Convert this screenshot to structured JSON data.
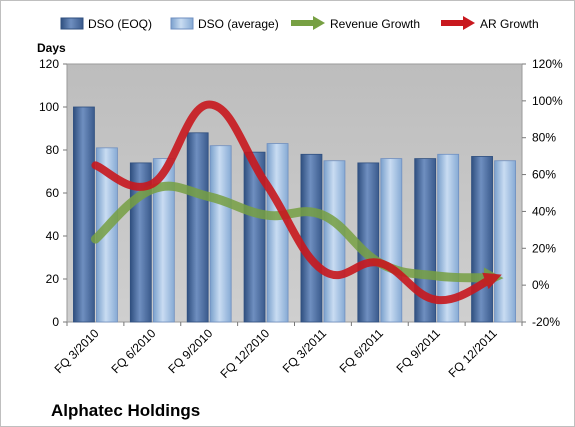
{
  "chart_data": {
    "type": "bar",
    "title": "Alphatec Holdings",
    "y_left_label": "Days",
    "y_left_range": [
      0,
      120
    ],
    "y_left_ticks": [
      "0",
      "20",
      "40",
      "60",
      "80",
      "100",
      "120"
    ],
    "y_right_range": [
      -20,
      120
    ],
    "y_right_ticks": [
      "-20%",
      "0%",
      "20%",
      "40%",
      "60%",
      "80%",
      "100%",
      "120%"
    ],
    "categories": [
      "FQ 3/2010",
      "FQ 6/2010",
      "FQ 9/2010",
      "FQ 12/2010",
      "FQ 3/2011",
      "FQ 6/2011",
      "FQ 9/2011",
      "FQ 12/2011"
    ],
    "series": [
      {
        "name": "DSO (EOQ)",
        "kind": "bar",
        "axis": "left",
        "color": "#4a6a9c",
        "values": [
          100,
          74,
          88,
          79,
          78,
          74,
          76,
          77
        ]
      },
      {
        "name": "DSO (average)",
        "kind": "bar",
        "axis": "left",
        "color": "#8fb1d9",
        "values": [
          81,
          76,
          82,
          83,
          75,
          76,
          78,
          75
        ]
      },
      {
        "name": "Revenue Growth",
        "kind": "line",
        "axis": "right",
        "color": "#77a043",
        "values": [
          25,
          52,
          48,
          38,
          38,
          12,
          5,
          4
        ]
      },
      {
        "name": "AR Growth",
        "kind": "line",
        "axis": "right",
        "color": "#c8181e",
        "values": [
          65,
          55,
          98,
          55,
          8,
          12,
          -8,
          4
        ]
      }
    ],
    "grid": false,
    "legend_position": "top"
  }
}
